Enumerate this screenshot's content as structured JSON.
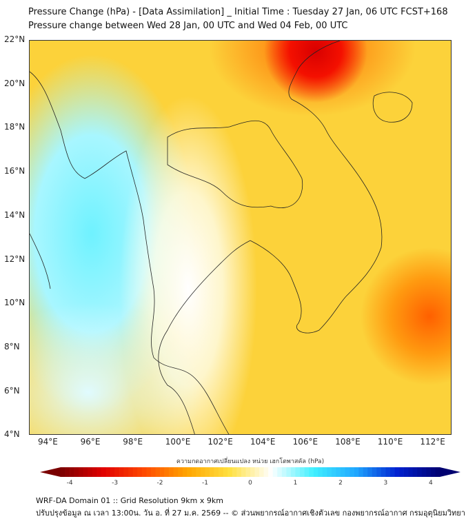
{
  "title_line1": "Pressure Change (hPa) - [Data Assimilation] _ Initial Time : Tuesday 27 Jan, 06 UTC FCST+168",
  "title_line2": "Pressure change between Wed 28 Jan, 00 UTC and Wed 04 Feb, 00 UTC",
  "map": {
    "lon_ticks": [
      "94°E",
      "96°E",
      "98°E",
      "100°E",
      "102°E",
      "104°E",
      "106°E",
      "108°E",
      "110°E",
      "112°E"
    ],
    "lat_ticks": [
      "22°N",
      "20°N",
      "18°N",
      "16°N",
      "14°N",
      "12°N",
      "10°N",
      "8°N",
      "6°N",
      "4°N"
    ]
  },
  "colorbar": {
    "title": "ความกดอากาศเปลี่ยนแปลง หน่วย เฮกโตพาสคัล (hPa)",
    "ticks": [
      "-4",
      "-3",
      "-2",
      "-1",
      "0",
      "1",
      "2",
      "3",
      "4"
    ],
    "range": [
      -4.2,
      4.2
    ],
    "colors": [
      "#7a0000",
      "#e00000",
      "#ff4a00",
      "#ffa500",
      "#ffe040",
      "#ffffff",
      "#40f0ff",
      "#20a8ff",
      "#0020d0",
      "#000070"
    ]
  },
  "footer": {
    "line1": "WRF-DA Domain 01 :: Grid Resolution 9km x 9km",
    "line2": "ปรับปรุงข้อมูล ณ เวลา 13:00น. วัน อ. ที่ 27 ม.ค. 2569 -- © ส่วนพยากรณ์อากาศเชิงตัวเลข กองพยากรณ์อากาศ กรมอุตุนิยมวิทยา"
  }
}
